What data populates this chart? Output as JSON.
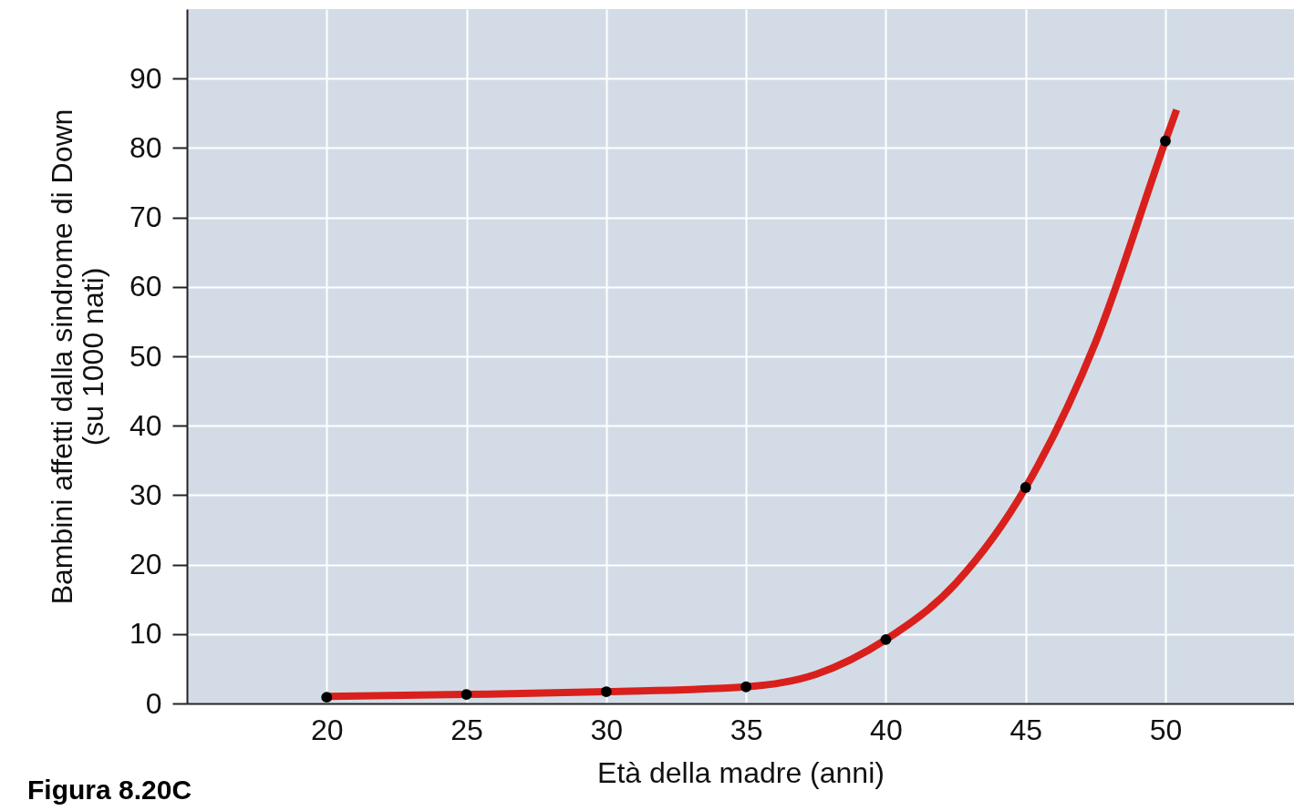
{
  "chart_data": {
    "type": "scatter",
    "xlabel": "Età della madre (anni)",
    "ylabel": "Bambini affetti dalla sindrome di Down (su 1000 nati)",
    "annotations": [
      "Figura 8.20C"
    ],
    "xlim": [
      15,
      54.6
    ],
    "ylim": [
      0,
      100
    ],
    "xticks": [
      20,
      25,
      30,
      35,
      40,
      45,
      50
    ],
    "yticks": [
      0,
      10,
      20,
      30,
      40,
      50,
      60,
      70,
      80,
      90
    ],
    "grid": true,
    "series": [
      {
        "type": "line",
        "color": "#d9201c",
        "marker": "none",
        "x": [
          20,
          25,
          30,
          35,
          37.5,
          40,
          42.5,
          45,
          47.5,
          50,
          50.4
        ],
        "values": [
          1,
          1.3,
          1.7,
          2.4,
          4.2,
          9.2,
          17.3,
          31.1,
          52,
          81,
          85.5
        ]
      },
      {
        "color": "#000000",
        "marker": "circle",
        "x": [
          20,
          25,
          30,
          35,
          40,
          45,
          50
        ],
        "values": [
          0.9,
          1.3,
          1.7,
          2.4,
          9.2,
          31.1,
          81
        ]
      }
    ]
  }
}
